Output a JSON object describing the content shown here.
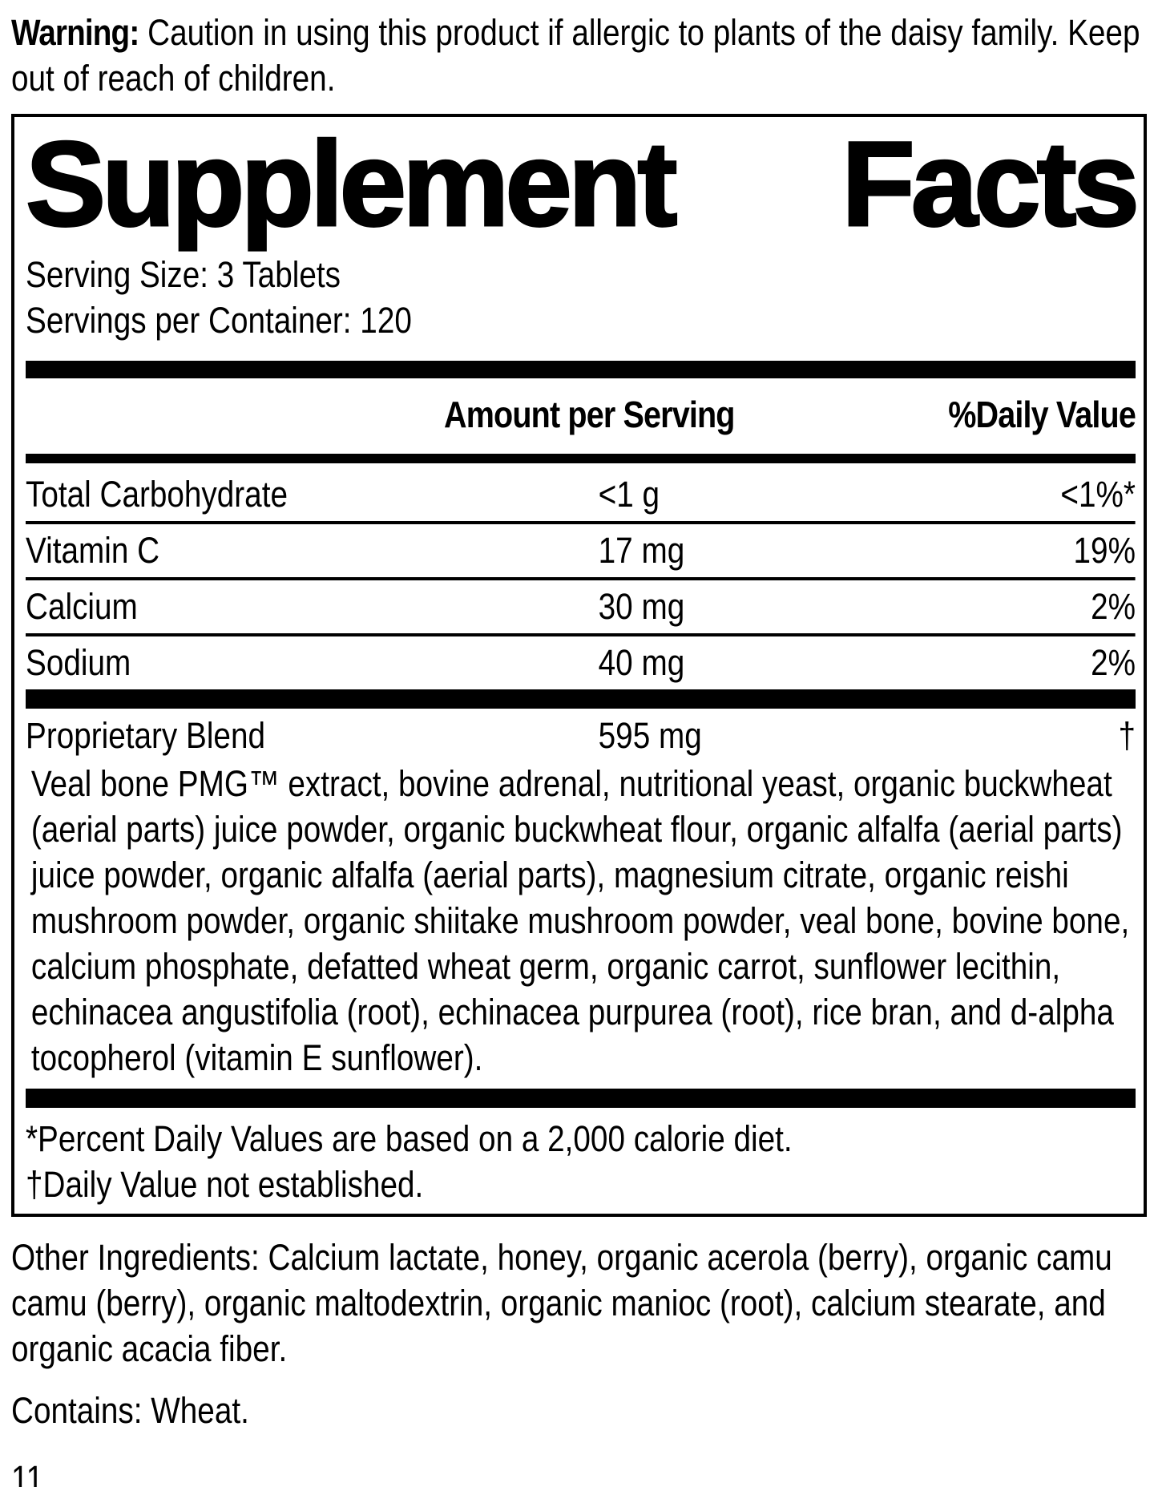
{
  "colors": {
    "text": "#000000",
    "background": "#ffffff"
  },
  "warning": {
    "label": "Warning:",
    "text": "Caution in using this product if allergic to plants of the daisy family. Keep out of reach of children."
  },
  "panel": {
    "title_left": "Supplement",
    "title_right": "Facts",
    "serving_size": "Serving Size: 3 Tablets",
    "servings_per_container": "Servings per Container: 120"
  },
  "table": {
    "columns": {
      "amount": "Amount per Serving",
      "daily_value": "%Daily Value"
    },
    "rows": [
      {
        "name": "Total Carbohydrate",
        "amount": "<1 g",
        "daily_value": "<1%*"
      },
      {
        "name": "Vitamin C",
        "amount": "17 mg",
        "daily_value": "19%"
      },
      {
        "name": "Calcium",
        "amount": "30 mg",
        "daily_value": "2%"
      },
      {
        "name": "Sodium",
        "amount": "40 mg",
        "daily_value": "2%"
      }
    ],
    "proprietary_blend": {
      "name": "Proprietary Blend",
      "amount": "595 mg",
      "daily_value": "†",
      "description": "Veal bone PMG™ extract, bovine adrenal, nutritional yeast, organic buckwheat (aerial parts) juice powder, organic buckwheat flour, organic alfalfa (aerial parts) juice powder, organic alfalfa (aerial parts), magnesium citrate, organic reishi mushroom powder, organic shiitake mushroom powder, veal bone, bovine bone, calcium phosphate, defatted wheat germ, organic carrot, sunflower lecithin, echinacea angustifolia (root), echinacea purpurea (root), rice bran, and d-alpha tocopherol (vitamin E sunflower)."
    },
    "footnotes": [
      "*Percent Daily Values are based on a 2,000 calorie diet.",
      "†Daily Value not established."
    ]
  },
  "other_ingredients": "Other Ingredients: Calcium lactate, honey, organic acerola (berry), organic camu camu (berry), organic maltodextrin, organic manioc (root), calcium stearate, and organic acacia fiber.",
  "contains": "Contains: Wheat.",
  "page_number": "11"
}
